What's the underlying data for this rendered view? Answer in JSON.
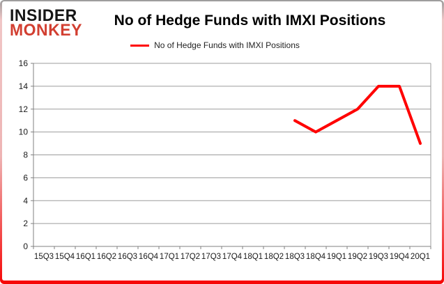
{
  "header": {
    "logo_line1": "INSIDER",
    "logo_line2": "MONKEY",
    "title": "No of Hedge Funds with IMXI Positions"
  },
  "legend": {
    "label": "No of Hedge Funds with IMXI Positions",
    "line_color": "#ff0000"
  },
  "chart_data": {
    "type": "line",
    "title": "No of Hedge Funds with IMXI Positions",
    "categories": [
      "15Q3",
      "15Q4",
      "16Q1",
      "16Q2",
      "16Q3",
      "16Q4",
      "17Q1",
      "17Q2",
      "17Q3",
      "17Q4",
      "18Q1",
      "18Q2",
      "18Q3",
      "18Q4",
      "19Q1",
      "19Q2",
      "19Q3",
      "19Q4",
      "20Q1"
    ],
    "series": [
      {
        "name": "No of Hedge Funds with IMXI Positions",
        "color": "#ff0000",
        "values": [
          null,
          null,
          null,
          null,
          null,
          null,
          null,
          null,
          null,
          null,
          null,
          null,
          11,
          10,
          11,
          12,
          14,
          14,
          9
        ]
      }
    ],
    "xlabel": "",
    "ylabel": "",
    "ylim": [
      0,
      16
    ],
    "ytick_step": 2,
    "grid": true,
    "legend_position": "top"
  },
  "colors": {
    "grid": "#9b9b9b",
    "axis": "#808080",
    "tick_label": "#1a1a1a",
    "series": "#ff0000",
    "logo_black": "#161616",
    "logo_red": "#d23f31",
    "frame_red": "#f60606"
  }
}
